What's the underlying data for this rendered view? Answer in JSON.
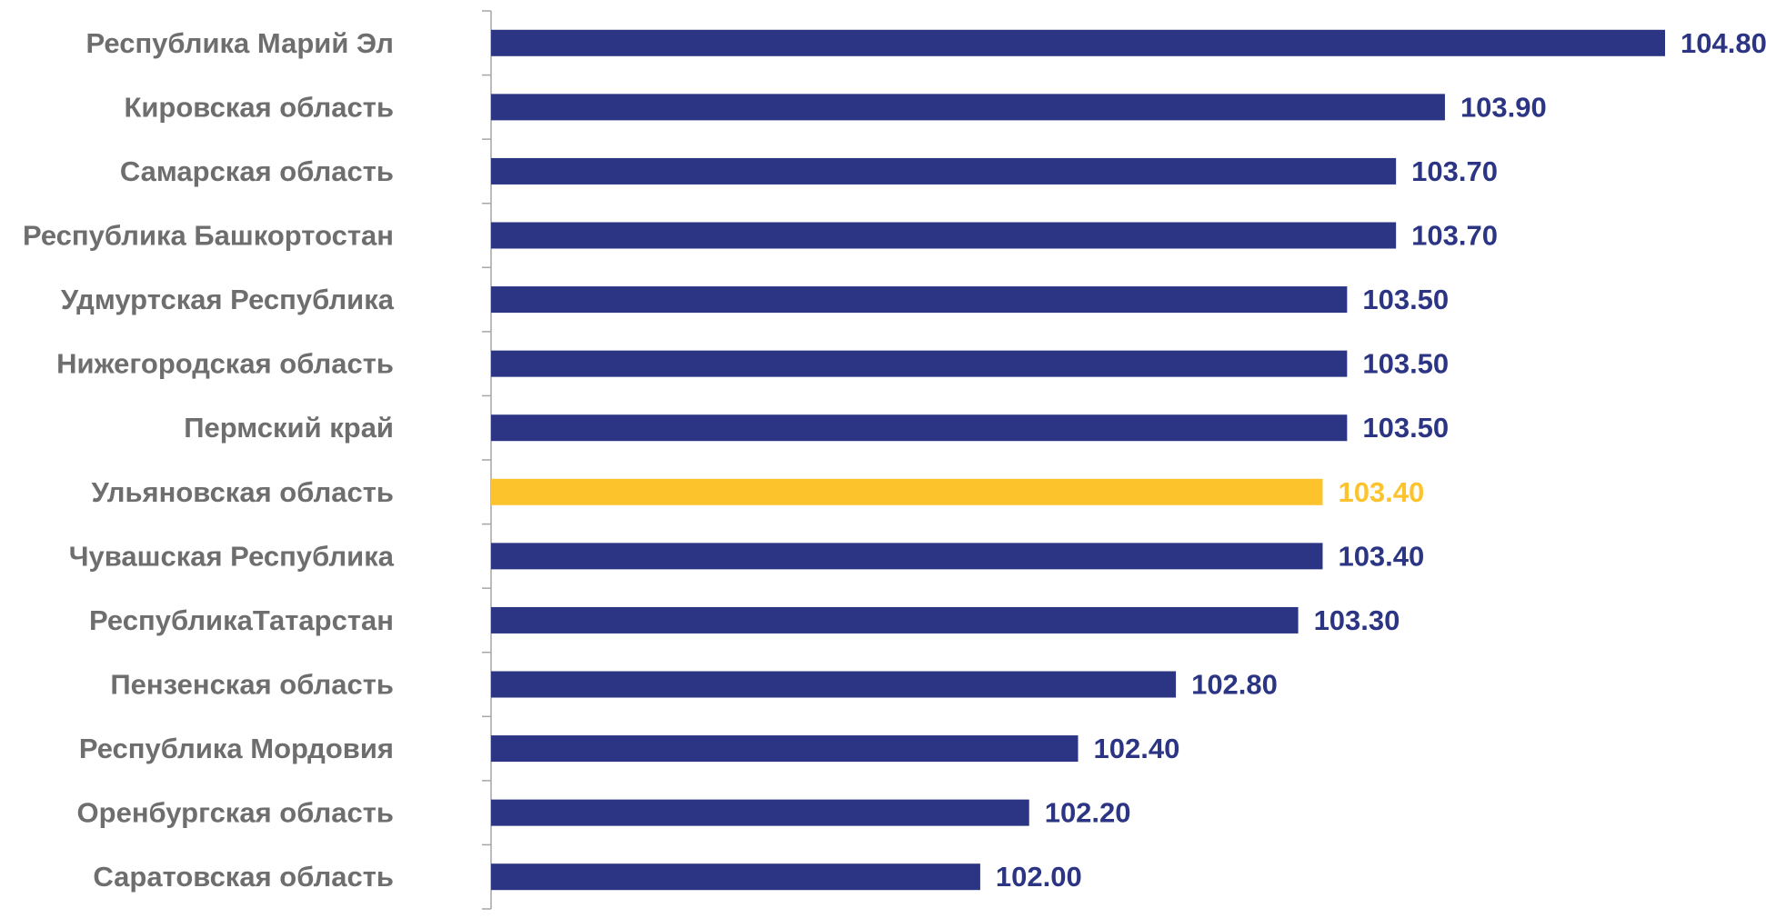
{
  "chart_data": {
    "type": "bar",
    "orientation": "horizontal",
    "categories": [
      "Республика Марий Эл",
      "Кировская область",
      "Самарская область",
      "Республика Башкортостан",
      "Удмуртская Республика",
      "Нижегородская область",
      "Пермский край",
      "Ульяновская область",
      "Чувашская Республика",
      "РеспубликаТатарстан",
      "Пензенская область",
      "Республика Мордовия",
      "Оренбургская область",
      "Саратовская область"
    ],
    "values": [
      104.8,
      103.9,
      103.7,
      103.7,
      103.5,
      103.5,
      103.5,
      103.4,
      103.4,
      103.3,
      102.8,
      102.4,
      102.2,
      102.0
    ],
    "value_labels": [
      "104.80",
      "103.90",
      "103.70",
      "103.70",
      "103.50",
      "103.50",
      "103.50",
      "103.40",
      "103.40",
      "103.30",
      "102.80",
      "102.40",
      "102.20",
      "102.00"
    ],
    "highlight_index": 7,
    "xlim": [
      100,
      104.8
    ],
    "grid": false,
    "legend": "none",
    "colors": {
      "bar": "#2b3583",
      "highlight": "#fdc32d",
      "category_text": "#6e6e6e",
      "axis": "#a6a6a6"
    }
  }
}
